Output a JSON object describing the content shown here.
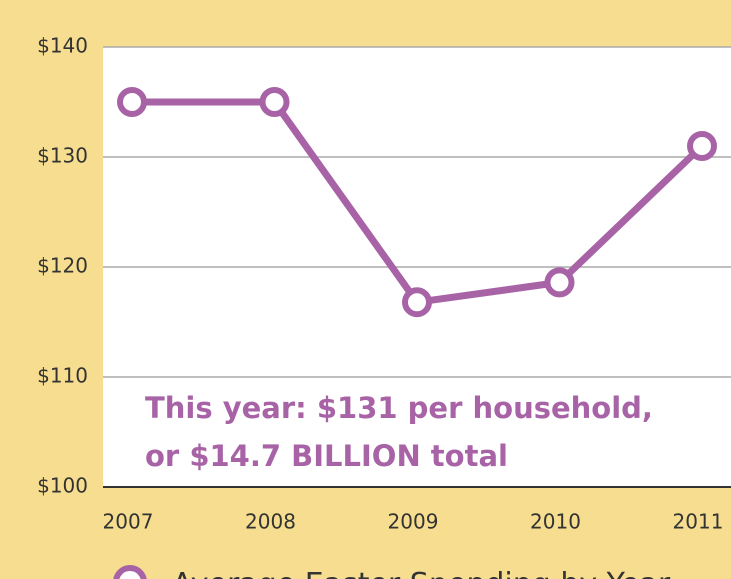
{
  "chart_data": {
    "type": "line",
    "categories": [
      "2007",
      "2008",
      "2009",
      "2010",
      "2011"
    ],
    "series": [
      {
        "name": "Average Easter Spending by Year",
        "color": "#a863a6",
        "values": [
          135,
          135,
          116.8,
          118.6,
          131
        ]
      }
    ],
    "ylim": [
      100,
      140
    ],
    "yticks": [
      {
        "value": 100,
        "label": "$100"
      },
      {
        "value": 110,
        "label": "$110"
      },
      {
        "value": 120,
        "label": "$120"
      },
      {
        "value": 130,
        "label": "$130"
      },
      {
        "value": 140,
        "label": "$140"
      }
    ],
    "grid": true,
    "annotations": [
      "This year: $131 per household,",
      "or $14.7 BILLION total"
    ],
    "legend": "bottom"
  }
}
